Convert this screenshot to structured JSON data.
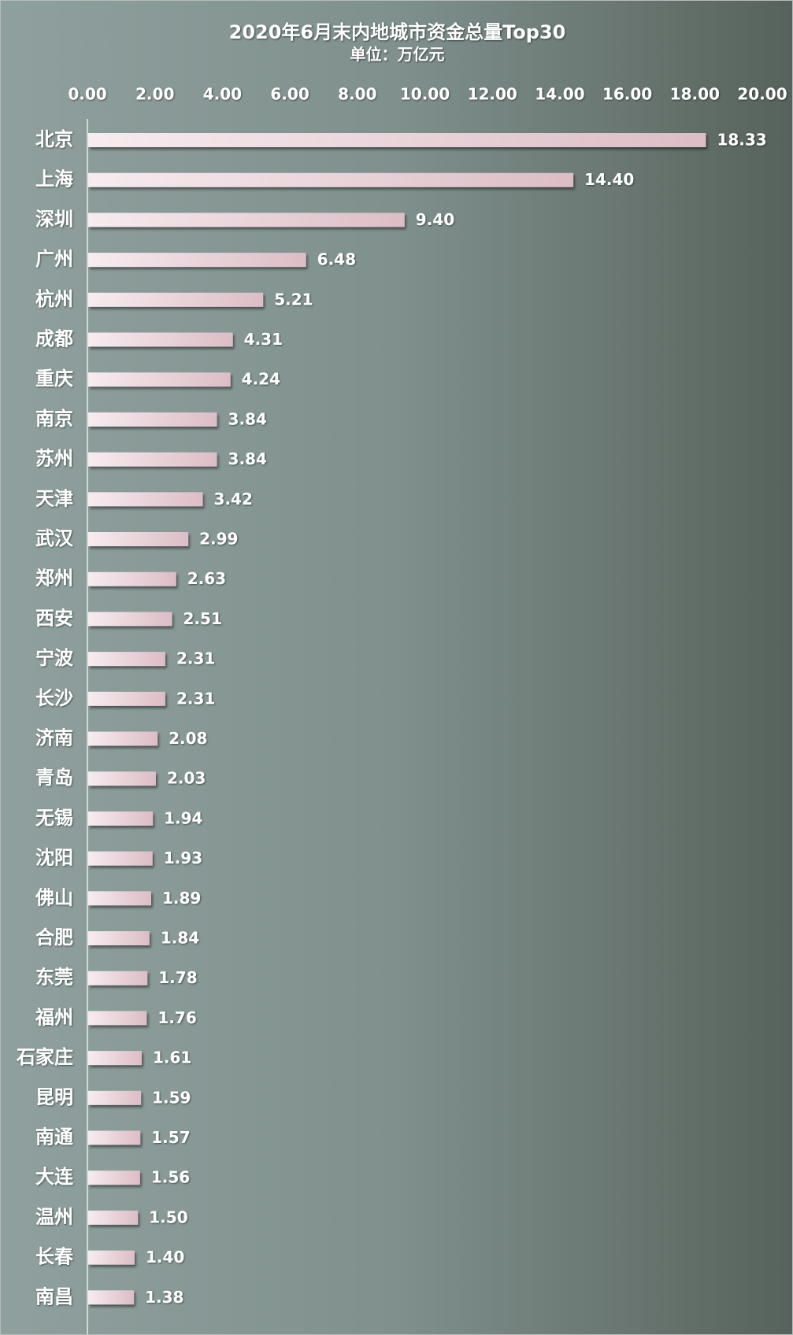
{
  "chart_data": {
    "type": "bar",
    "orientation": "horizontal",
    "title": "2020年6月末内地城市资金总量Top30",
    "subtitle": "单位：万亿元",
    "xlim": [
      0,
      20
    ],
    "ticks": [
      "0.00",
      "2.00",
      "4.00",
      "6.00",
      "8.00",
      "10.00",
      "12.00",
      "14.00",
      "16.00",
      "18.00",
      "20.00"
    ],
    "axis_position": "top",
    "grid": false,
    "categories": [
      "北京",
      "上海",
      "深圳",
      "广州",
      "杭州",
      "成都",
      "重庆",
      "南京",
      "苏州",
      "天津",
      "武汉",
      "郑州",
      "西安",
      "宁波",
      "长沙",
      "济南",
      "青岛",
      "无锡",
      "沈阳",
      "佛山",
      "合肥",
      "东莞",
      "福州",
      "石家庄",
      "昆明",
      "南通",
      "大连",
      "温州",
      "长春",
      "南昌"
    ],
    "values": [
      18.33,
      14.4,
      9.4,
      6.48,
      5.21,
      4.31,
      4.24,
      3.84,
      3.84,
      3.42,
      2.99,
      2.63,
      2.51,
      2.31,
      2.31,
      2.08,
      2.03,
      1.94,
      1.93,
      1.89,
      1.84,
      1.78,
      1.76,
      1.61,
      1.59,
      1.57,
      1.56,
      1.5,
      1.4,
      1.38
    ],
    "value_labels": [
      "18.33",
      "14.40",
      "9.40",
      "6.48",
      "5.21",
      "4.31",
      "4.24",
      "3.84",
      "3.84",
      "3.42",
      "2.99",
      "2.63",
      "2.51",
      "2.31",
      "2.31",
      "2.08",
      "2.03",
      "1.94",
      "1.93",
      "1.89",
      "1.84",
      "1.78",
      "1.76",
      "1.61",
      "1.59",
      "1.57",
      "1.56",
      "1.50",
      "1.40",
      "1.38"
    ],
    "colors": {
      "bar_light": "#f7ecef",
      "bar_dark": "#dcbdc6",
      "text": "#ffffff",
      "axis": "#e8ecec"
    }
  }
}
